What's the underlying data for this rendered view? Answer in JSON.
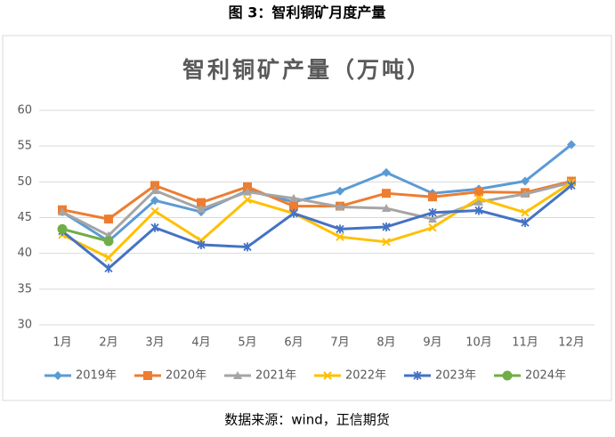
{
  "figure_caption": "图 3：智利铜矿月度产量",
  "source": "数据来源：wind，正信期货",
  "chart_data": {
    "type": "line",
    "title": "智利铜矿产量（万吨）",
    "categories": [
      "1月",
      "2月",
      "3月",
      "4月",
      "5月",
      "6月",
      "7月",
      "8月",
      "9月",
      "10月",
      "11月",
      "12月"
    ],
    "series": [
      {
        "name": "2019年",
        "color": "#5b9bd5",
        "marker": "diamond",
        "values": [
          45.8,
          41.7,
          47.4,
          45.8,
          48.8,
          47.2,
          48.7,
          51.3,
          48.4,
          49.0,
          50.1,
          55.2
        ]
      },
      {
        "name": "2020年",
        "color": "#ed7d31",
        "marker": "square",
        "values": [
          46.1,
          44.8,
          49.5,
          47.1,
          49.3,
          46.6,
          46.6,
          48.4,
          47.9,
          48.6,
          48.5,
          50.1
        ]
      },
      {
        "name": "2021年",
        "color": "#a5a5a5",
        "marker": "triangle",
        "values": [
          45.8,
          42.5,
          48.8,
          46.2,
          48.6,
          47.7,
          46.5,
          46.3,
          44.8,
          47.2,
          48.3,
          49.9
        ]
      },
      {
        "name": "2022年",
        "color": "#ffc000",
        "marker": "x",
        "values": [
          42.6,
          39.4,
          45.9,
          41.8,
          47.5,
          45.6,
          42.3,
          41.6,
          43.6,
          47.7,
          45.7,
          49.9
        ]
      },
      {
        "name": "2023年",
        "color": "#4472c4",
        "marker": "star",
        "values": [
          43.1,
          37.9,
          43.6,
          41.2,
          40.9,
          45.6,
          43.4,
          43.7,
          45.7,
          46.0,
          44.3,
          49.5
        ]
      },
      {
        "name": "2024年",
        "color": "#70ad47",
        "marker": "circle",
        "values": [
          43.4,
          41.7,
          null,
          null,
          null,
          null,
          null,
          null,
          null,
          null,
          null,
          null
        ]
      }
    ],
    "ylim": [
      30,
      60
    ],
    "yticks": [
      30,
      35,
      40,
      45,
      50,
      55,
      60
    ],
    "grid": true,
    "legend": "bottom"
  }
}
